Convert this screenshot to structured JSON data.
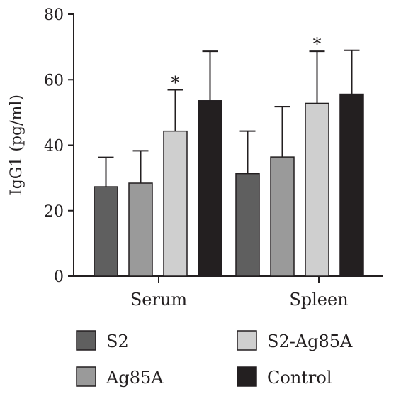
{
  "chart_data": {
    "type": "bar",
    "categories": [
      "Serum",
      "Spleen"
    ],
    "ylabel": "IgG1 (pg/ml)",
    "ylim": [
      0,
      80
    ],
    "yticks": [
      0,
      20,
      40,
      60,
      80
    ],
    "series": [
      {
        "name": "S2",
        "color": "#5f5f5f",
        "values": [
          27.3,
          31.3
        ],
        "errors": [
          9.0,
          13.0
        ],
        "significance": [
          "",
          ""
        ]
      },
      {
        "name": "Ag85A",
        "color": "#9a9a9a",
        "values": [
          28.4,
          36.4
        ],
        "errors": [
          9.9,
          15.4
        ],
        "significance": [
          "",
          ""
        ]
      },
      {
        "name": "S2-Ag85A",
        "color": "#cfcfcf",
        "values": [
          44.3,
          52.8
        ],
        "errors": [
          12.6,
          15.9
        ],
        "significance": [
          "*",
          "*"
        ]
      },
      {
        "name": "Control",
        "color": "#231f20",
        "values": [
          53.6,
          55.6
        ],
        "errors": [
          15.1,
          13.4
        ],
        "significance": [
          "",
          ""
        ]
      }
    ],
    "legend": {
      "placement": "bottom",
      "columns": 2
    },
    "grid": false
  }
}
